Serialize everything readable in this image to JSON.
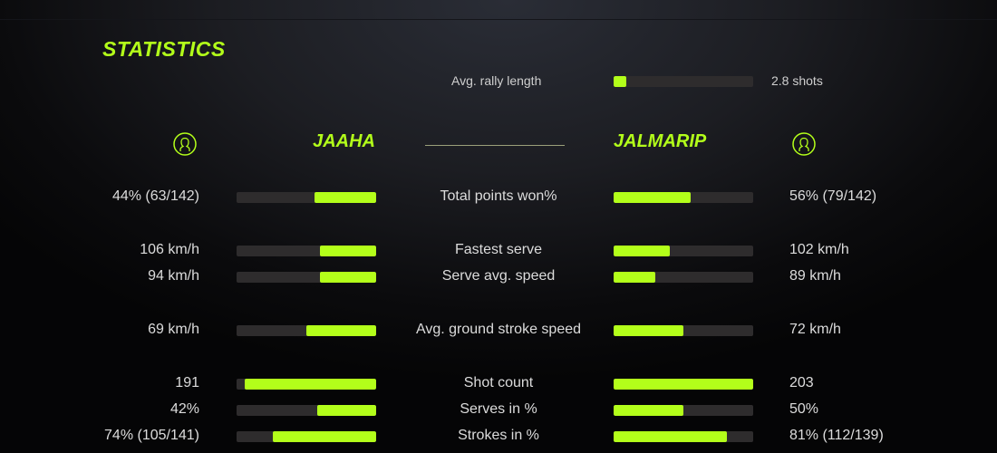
{
  "title": "STATISTICS",
  "accent_color": "#b3ff1a",
  "rally": {
    "label": "Avg. rally length",
    "value": "2.8 shots",
    "fill": 0.09
  },
  "players": {
    "left": {
      "name": "JAAHA",
      "icon": "user-circle-icon"
    },
    "right": {
      "name": "JALMARIP",
      "icon": "user-circle-icon"
    }
  },
  "stats": [
    {
      "label": "Total points won%",
      "left": "44% (63/142)",
      "right": "56% (79/142)",
      "left_fill": 0.44,
      "right_fill": 0.55
    },
    {
      "label": "Fastest serve",
      "left": "106 km/h",
      "right": "102 km/h",
      "left_fill": 0.4,
      "right_fill": 0.4
    },
    {
      "label": "Serve avg. speed",
      "left": "94 km/h",
      "right": "89 km/h",
      "left_fill": 0.4,
      "right_fill": 0.3
    },
    {
      "label": "Avg. ground stroke speed",
      "left": "69 km/h",
      "right": "72 km/h",
      "left_fill": 0.5,
      "right_fill": 0.5
    },
    {
      "label": "Shot count",
      "left": "191",
      "right": "203",
      "left_fill": 0.94,
      "right_fill": 1.0
    },
    {
      "label": "Serves in %",
      "left": "42%",
      "right": "50%",
      "left_fill": 0.42,
      "right_fill": 0.5
    },
    {
      "label": "Strokes in %",
      "left": "74% (105/141)",
      "right": "81% (112/139)",
      "left_fill": 0.74,
      "right_fill": 0.81
    }
  ]
}
